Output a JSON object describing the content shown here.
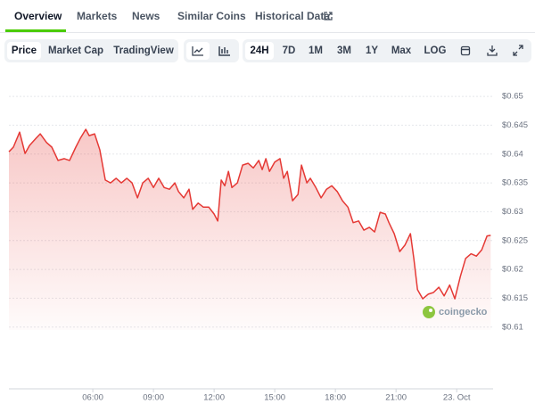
{
  "tabs": {
    "items": [
      "Overview",
      "Markets",
      "News",
      "Similar Coins",
      "Historical Data"
    ]
  },
  "toolbar": {
    "views": [
      "Price",
      "Market Cap",
      "TradingView"
    ],
    "ranges": [
      "24H",
      "7D",
      "1M",
      "3M",
      "1Y",
      "Max"
    ],
    "scale": "LOG"
  },
  "watermark": "coingecko",
  "chart_data": {
    "type": "line",
    "x": [
      1.85,
      2.07,
      2.38,
      2.65,
      2.87,
      3.18,
      3.4,
      3.71,
      3.97,
      4.28,
      4.59,
      4.85,
      5.16,
      5.38,
      5.65,
      5.82,
      6.09,
      6.35,
      6.62,
      6.88,
      7.15,
      7.41,
      7.68,
      7.94,
      8.21,
      8.47,
      8.74,
      9.0,
      9.26,
      9.53,
      9.79,
      10.06,
      10.24,
      10.5,
      10.76,
      10.94,
      11.21,
      11.47,
      11.74,
      12.0,
      12.18,
      12.35,
      12.53,
      12.71,
      12.88,
      13.15,
      13.41,
      13.68,
      13.94,
      14.21,
      14.38,
      14.56,
      14.74,
      15.0,
      15.26,
      15.44,
      15.62,
      15.88,
      16.15,
      16.32,
      16.59,
      16.76,
      17.03,
      17.29,
      17.56,
      17.82,
      18.09,
      18.35,
      18.62,
      18.88,
      19.15,
      19.41,
      19.68,
      19.94,
      20.21,
      20.47,
      20.65,
      20.91,
      21.18,
      21.44,
      21.71,
      21.88,
      22.06,
      22.32,
      22.59,
      22.85,
      23.12,
      23.38,
      23.65,
      23.91,
      24.18,
      24.44,
      24.71,
      24.97,
      25.24,
      25.5,
      25.68
    ],
    "series": [
      {
        "color": "#e53935",
        "values": [
          0.6404,
          0.6412,
          0.6438,
          0.6401,
          0.6415,
          0.6427,
          0.6435,
          0.642,
          0.6412,
          0.6389,
          0.6392,
          0.6389,
          0.6412,
          0.6427,
          0.6443,
          0.6432,
          0.6435,
          0.6407,
          0.6355,
          0.635,
          0.6358,
          0.635,
          0.6358,
          0.635,
          0.6324,
          0.635,
          0.6358,
          0.6342,
          0.6358,
          0.6342,
          0.6339,
          0.635,
          0.6335,
          0.6324,
          0.6339,
          0.6304,
          0.6315,
          0.6308,
          0.6308,
          0.6296,
          0.6284,
          0.6355,
          0.6345,
          0.637,
          0.6342,
          0.635,
          0.6381,
          0.6384,
          0.6376,
          0.6389,
          0.6373,
          0.6392,
          0.637,
          0.6386,
          0.6392,
          0.6358,
          0.637,
          0.6319,
          0.633,
          0.6381,
          0.635,
          0.6358,
          0.6342,
          0.6324,
          0.6339,
          0.6345,
          0.6335,
          0.6319,
          0.6308,
          0.6281,
          0.6284,
          0.6268,
          0.6273,
          0.6265,
          0.6299,
          0.6296,
          0.6281,
          0.6262,
          0.6231,
          0.6242,
          0.6262,
          0.6219,
          0.6165,
          0.6149,
          0.6157,
          0.616,
          0.6169,
          0.6154,
          0.6173,
          0.6149,
          0.6188,
          0.6219,
          0.6227,
          0.6223,
          0.6234,
          0.6258,
          0.6259
        ]
      }
    ],
    "xlim": [
      1.85,
      25.8
    ],
    "xticks": [
      {
        "value": 6,
        "label": "06:00"
      },
      {
        "value": 9,
        "label": "09:00"
      },
      {
        "value": 12,
        "label": "12:00"
      },
      {
        "value": 15,
        "label": "15:00"
      },
      {
        "value": 18,
        "label": "18:00"
      },
      {
        "value": 21,
        "label": "21:00"
      },
      {
        "value": 24,
        "label": "23. Oct"
      }
    ],
    "ylim": [
      0.6095,
      0.6545
    ],
    "yticks": [
      {
        "value": 0.61,
        "label": "$0.61"
      },
      {
        "value": 0.615,
        "label": "$0.615"
      },
      {
        "value": 0.62,
        "label": "$0.62"
      },
      {
        "value": 0.625,
        "label": "$0.625"
      },
      {
        "value": 0.63,
        "label": "$0.63"
      },
      {
        "value": 0.635,
        "label": "$0.635"
      },
      {
        "value": 0.64,
        "label": "$0.64"
      },
      {
        "value": 0.645,
        "label": "$0.645"
      },
      {
        "value": 0.65,
        "label": "$0.65"
      }
    ],
    "grid": true
  }
}
